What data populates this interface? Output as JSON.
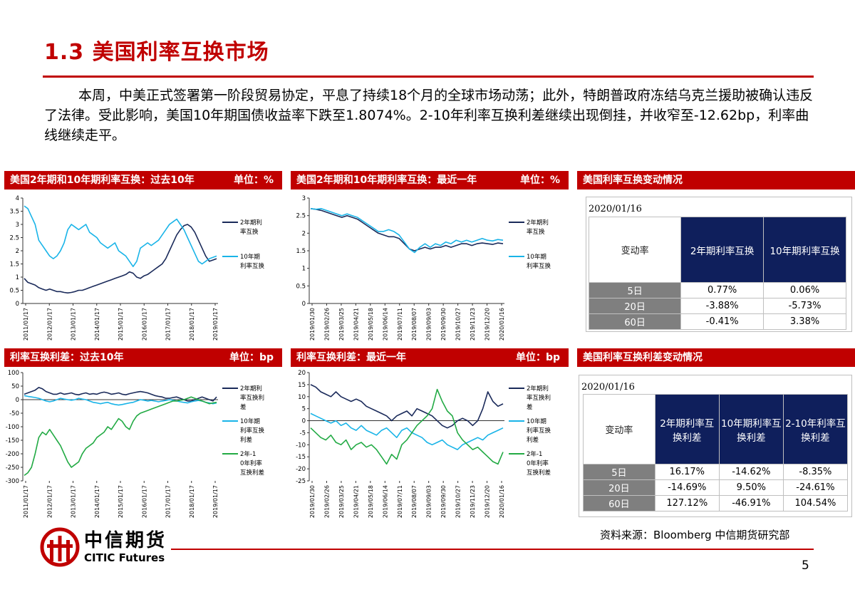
{
  "page": {
    "title": "1.3 美国利率互换市场",
    "intro": "本周，中美正式签署第一阶段贸易协定，平息了持续18个月的全球市场动荡；此外，特朗普政府冻结乌克兰援助被确认违反了法律。受此影响，美国10年期国债收益率下跌至1.8074%。2-10年利率互换利差继续出现倒挂，并收窄至-12.62bp，利率曲线继续走平。",
    "source": "资料来源：Bloomberg 中信期货研究部",
    "page_number": "5",
    "logo_cn": "中信期货",
    "logo_en": "CITIC Futures"
  },
  "colors": {
    "accent": "#c00000",
    "navy": "#0f1f5c",
    "series_dark": "#1a2a5a",
    "series_light": "#19b4e8",
    "series_green": "#22aa44",
    "gray_cell": "#7f7f7f"
  },
  "panels": {
    "p1": {
      "title": "美国2年期和10年期利率互换：过去10年",
      "unit": "单位：%"
    },
    "p2": {
      "title": "美国2年期和10年期利率互换：最近一年",
      "unit": "单位：%"
    },
    "p3": {
      "title": "美国利率互换变动情况"
    },
    "p4": {
      "title": "利率互换利差：过去10年",
      "unit": "单位：bp"
    },
    "p5": {
      "title": "利率互换利差：最近一年",
      "unit": "单位：bp"
    },
    "p6": {
      "title": "美国利率互换利差变动情况"
    }
  },
  "table1": {
    "date": "2020/01/16",
    "corner": "变动率",
    "headers": [
      "2年期利率互换",
      "10年期利率互换"
    ],
    "rows": [
      {
        "label": "5日",
        "values": [
          "0.77%",
          "0.06%"
        ]
      },
      {
        "label": "20日",
        "values": [
          "-3.88%",
          "-5.73%"
        ]
      },
      {
        "label": "60日",
        "values": [
          "-0.41%",
          "3.38%"
        ]
      }
    ]
  },
  "table2": {
    "date": "2020/01/16",
    "corner": "变动率",
    "headers": [
      "2年期利率互换利差",
      "10年期利率互换利差",
      "2-10年利率互换利差"
    ],
    "rows": [
      {
        "label": "5日",
        "values": [
          "16.17%",
          "-14.62%",
          "-8.35%"
        ]
      },
      {
        "label": "20日",
        "values": [
          "-14.69%",
          "9.50%",
          "-24.61%"
        ]
      },
      {
        "label": "60日",
        "values": [
          "127.12%",
          "-46.91%",
          "104.54%"
        ]
      }
    ]
  },
  "chart_data": [
    {
      "id": "c1",
      "type": "line",
      "title": "美国2年期和10年期利率互换：过去10年",
      "ylim": [
        0,
        4
      ],
      "yticks": [
        "0",
        "0.5",
        "1",
        "1.5",
        "2",
        "2.5",
        "3",
        "3.5",
        "4"
      ],
      "xticks": [
        "2011/01/17",
        "2012/01/17",
        "2013/01/17",
        "2014/01/17",
        "2015/01/17",
        "2016/01/17",
        "2017/01/17",
        "2018/01/17",
        "2019/01/17"
      ],
      "legend": [
        "2年期利率互换",
        "10年期利率互换"
      ],
      "series": [
        {
          "name": "2年期利率互换",
          "color": "#1a2a5a",
          "values": [
            0.95,
            0.8,
            0.75,
            0.7,
            0.6,
            0.55,
            0.5,
            0.55,
            0.5,
            0.45,
            0.45,
            0.42,
            0.4,
            0.42,
            0.45,
            0.5,
            0.5,
            0.55,
            0.6,
            0.65,
            0.7,
            0.75,
            0.8,
            0.85,
            0.9,
            0.95,
            1.0,
            1.05,
            1.1,
            1.2,
            1.15,
            1.0,
            0.95,
            1.05,
            1.1,
            1.2,
            1.3,
            1.4,
            1.5,
            1.7,
            2.0,
            2.3,
            2.6,
            2.8,
            2.95,
            3.0,
            2.9,
            2.7,
            2.4,
            2.1,
            1.8,
            1.6,
            1.65,
            1.7
          ]
        },
        {
          "name": "10年期利率互换",
          "color": "#19b4e8",
          "values": [
            3.7,
            3.6,
            3.3,
            3.0,
            2.4,
            2.2,
            2.0,
            1.8,
            1.7,
            1.8,
            2.0,
            2.3,
            2.8,
            3.0,
            2.9,
            2.8,
            2.9,
            3.0,
            2.7,
            2.6,
            2.5,
            2.3,
            2.2,
            2.1,
            2.2,
            2.3,
            2.0,
            1.9,
            1.8,
            1.6,
            1.4,
            1.6,
            2.1,
            2.2,
            2.3,
            2.2,
            2.3,
            2.4,
            2.6,
            2.8,
            3.0,
            3.1,
            3.2,
            3.0,
            2.8,
            2.5,
            2.2,
            1.9,
            1.6,
            1.5,
            1.6,
            1.7,
            1.75,
            1.8
          ]
        }
      ]
    },
    {
      "id": "c2",
      "type": "line",
      "title": "美国2年期和10年期利率互换：最近一年",
      "ylim": [
        0,
        3
      ],
      "yticks": [
        "0",
        "0.5",
        "1",
        "1.5",
        "2",
        "2.5",
        "3"
      ],
      "xticks": [
        "2019/01/30",
        "2019/02/26",
        "2019/03/25",
        "2019/04/21",
        "2019/05/18",
        "2019/06/14",
        "2019/07/11",
        "2019/08/07",
        "2019/09/03",
        "2019/09/30",
        "2019/10/27",
        "2019/11/23",
        "2019/12/20",
        "2020/01/16"
      ],
      "legend": [
        "2年期利率互换",
        "10年期利率互换"
      ],
      "series": [
        {
          "name": "2年期利率互换",
          "color": "#1a2a5a",
          "values": [
            2.7,
            2.68,
            2.65,
            2.6,
            2.55,
            2.5,
            2.45,
            2.5,
            2.45,
            2.4,
            2.3,
            2.2,
            2.1,
            2.0,
            1.95,
            1.9,
            1.9,
            1.85,
            1.7,
            1.55,
            1.5,
            1.55,
            1.6,
            1.55,
            1.6,
            1.6,
            1.65,
            1.6,
            1.65,
            1.7,
            1.7,
            1.65,
            1.7,
            1.72,
            1.7,
            1.68,
            1.72,
            1.7
          ]
        },
        {
          "name": "10年期利率互换",
          "color": "#19b4e8",
          "values": [
            2.7,
            2.68,
            2.7,
            2.65,
            2.6,
            2.55,
            2.5,
            2.55,
            2.5,
            2.45,
            2.35,
            2.25,
            2.15,
            2.05,
            2.05,
            2.1,
            2.05,
            1.95,
            1.75,
            1.55,
            1.45,
            1.6,
            1.7,
            1.6,
            1.7,
            1.65,
            1.75,
            1.7,
            1.8,
            1.75,
            1.8,
            1.75,
            1.8,
            1.85,
            1.8,
            1.78,
            1.82,
            1.8
          ]
        }
      ]
    },
    {
      "id": "c4",
      "type": "line",
      "title": "利率互换利差：过去10年",
      "ylim": [
        -300,
        100
      ],
      "yticks": [
        "-300",
        "-250",
        "-200",
        "-150",
        "-100",
        "-50",
        "0",
        "50",
        "100"
      ],
      "xticks": [
        "2011/01/17",
        "2012/01/17",
        "2013/01/17",
        "2014/01/17",
        "2015/01/17",
        "2016/01/17",
        "2017/01/17",
        "2018/01/17",
        "2019/01/17"
      ],
      "legend": [
        "2年期利率互换利差",
        "10年期利率互换利差",
        "2年-10年利率互换利差"
      ],
      "series": [
        {
          "name": "2年期利率互换利差",
          "color": "#1a2a5a",
          "values": [
            20,
            25,
            30,
            35,
            45,
            40,
            30,
            25,
            20,
            20,
            25,
            20,
            22,
            25,
            20,
            18,
            22,
            25,
            20,
            22,
            20,
            25,
            28,
            25,
            20,
            22,
            25,
            20,
            18,
            22,
            25,
            28,
            30,
            28,
            25,
            20,
            15,
            12,
            10,
            5,
            5,
            8,
            10,
            5,
            0,
            -5,
            -5,
            0,
            5,
            10,
            5,
            0,
            -5,
            10
          ]
        },
        {
          "name": "10年期利率互换利差",
          "color": "#19b4e8",
          "values": [
            15,
            12,
            10,
            8,
            5,
            0,
            -5,
            -8,
            -5,
            0,
            5,
            2,
            0,
            -2,
            0,
            5,
            2,
            0,
            -5,
            -10,
            -12,
            -15,
            -12,
            -10,
            -15,
            -18,
            -20,
            -18,
            -15,
            -12,
            -10,
            -5,
            0,
            -2,
            -5,
            -3,
            -5,
            -8,
            -5,
            -3,
            0,
            -2,
            -5,
            -8,
            -10,
            -12,
            -8,
            -5,
            -3,
            -5,
            -10,
            -12,
            -15,
            -12
          ]
        },
        {
          "name": "2年-10年利率互换利差",
          "color": "#22aa44",
          "values": [
            -280,
            -270,
            -250,
            -200,
            -140,
            -120,
            -130,
            -110,
            -130,
            -150,
            -170,
            -200,
            -230,
            -250,
            -240,
            -230,
            -200,
            -180,
            -170,
            -160,
            -140,
            -130,
            -120,
            -100,
            -110,
            -90,
            -70,
            -80,
            -100,
            -110,
            -80,
            -60,
            -50,
            -45,
            -40,
            -35,
            -30,
            -25,
            -20,
            -15,
            -10,
            -5,
            -5,
            -2,
            0,
            5,
            10,
            5,
            0,
            -5,
            -10,
            -15,
            -12,
            -10
          ]
        }
      ]
    },
    {
      "id": "c5",
      "type": "line",
      "title": "利率互换利差：最近一年",
      "ylim": [
        -25,
        20
      ],
      "yticks": [
        "-25",
        "-20",
        "-15",
        "-10",
        "-5",
        "0",
        "5",
        "10",
        "15",
        "20"
      ],
      "xticks": [
        "2019/01/30",
        "2019/02/26",
        "2019/03/25",
        "2019/04/21",
        "2019/05/18",
        "2019/06/14",
        "2019/07/11",
        "2019/08/07",
        "2019/09/03",
        "2019/09/30",
        "2019/10/27",
        "2019/11/23",
        "2019/12/20",
        "2020/01/16"
      ],
      "legend": [
        "2年期利率互换利差",
        "10年期利率互换利差",
        "2年-10年利率互换利差"
      ],
      "series": [
        {
          "name": "2年期利率互换利差",
          "color": "#1a2a5a",
          "values": [
            15,
            14,
            12,
            11,
            10,
            12,
            10,
            9,
            8,
            9,
            8,
            6,
            5,
            4,
            3,
            2,
            0,
            2,
            3,
            4,
            2,
            5,
            4,
            3,
            2,
            0,
            -2,
            -3,
            -2,
            0,
            1,
            0,
            -2,
            0,
            5,
            12,
            8,
            6,
            7
          ]
        },
        {
          "name": "10年期利率互换利差",
          "color": "#19b4e8",
          "values": [
            3,
            2,
            1,
            0,
            -1,
            0,
            -2,
            -1,
            -3,
            -4,
            -2,
            -4,
            -5,
            -6,
            -4,
            -3,
            -5,
            -7,
            -4,
            -3,
            -5,
            -6,
            -7,
            -9,
            -10,
            -9,
            -8,
            -10,
            -11,
            -12,
            -10,
            -9,
            -8,
            -7,
            -8,
            -6,
            -5,
            -4,
            -3
          ]
        },
        {
          "name": "2年-10年利率互换利差",
          "color": "#22aa44",
          "values": [
            -3,
            -5,
            -7,
            -8,
            -6,
            -9,
            -10,
            -8,
            -12,
            -10,
            -9,
            -11,
            -10,
            -12,
            -15,
            -18,
            -14,
            -16,
            -10,
            -8,
            -5,
            -2,
            0,
            2,
            5,
            13,
            8,
            4,
            2,
            -5,
            -8,
            -10,
            -12,
            -11,
            -13,
            -15,
            -17,
            -18,
            -13
          ]
        }
      ]
    }
  ]
}
